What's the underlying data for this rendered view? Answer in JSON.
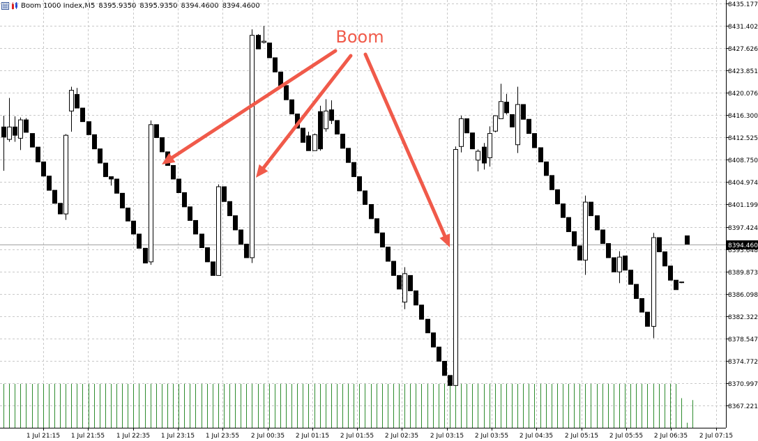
{
  "header": {
    "symbol": "Boom 1000 Index,M5",
    "ohlc": [
      "8395.9350",
      "8395.9350",
      "8394.4600",
      "8394.4600"
    ]
  },
  "annotation": {
    "text": "Boom",
    "color": "#f05a4a"
  },
  "colors": {
    "bull_fill": "#ffffff",
    "bear_fill": "#000000",
    "candle_outline": "#000000",
    "grid": "#c8c8c8",
    "volume": "#2e8b2e",
    "price_tag_bg": "#000000",
    "price_tag_fg": "#ffffff"
  },
  "chart_data": {
    "type": "candlestick",
    "symbol": "Boom 1000 Index",
    "timeframe": "M5",
    "ylim": [
      8365.0,
      8435.9
    ],
    "grid": true,
    "last_price": "8394.4600",
    "y_ticks": [
      "8435.1773",
      "8431.4020",
      "8427.6267",
      "8423.8514",
      "8420.0761",
      "8416.3007",
      "8412.5254",
      "8408.7501",
      "8404.9748",
      "8401.1995",
      "8397.4242",
      "8393.6489",
      "8389.8736",
      "8386.0982",
      "8382.3229",
      "8378.5476",
      "8374.7723",
      "8370.9970",
      "8367.2217"
    ],
    "x_ticks": [
      "1 Jul 21:15",
      "1 Jul 21:55",
      "1 Jul 22:35",
      "1 Jul 23:15",
      "1 Jul 23:55",
      "2 Jul 00:35",
      "2 Jul 01:15",
      "2 Jul 01:55",
      "2 Jul 02:35",
      "2 Jul 03:15",
      "2 Jul 03:55",
      "2 Jul 04:35",
      "2 Jul 05:15",
      "2 Jul 05:55",
      "2 Jul 06:35",
      "2 Jul 07:15"
    ],
    "candles": [
      {
        "o": 8414.3,
        "h": 8416.2,
        "l": 8406.9,
        "c": 8412.6
      },
      {
        "o": 8412.2,
        "h": 8419.2,
        "l": 8411.8,
        "c": 8414.3
      },
      {
        "o": 8414.3,
        "h": 8416.1,
        "l": 8411.8,
        "c": 8412.9
      },
      {
        "o": 8412.4,
        "h": 8415.9,
        "l": 8410.4,
        "c": 8415.5
      },
      {
        "o": 8415.5,
        "h": 8415.8,
        "l": 8413.4,
        "c": 8413.4
      },
      {
        "o": 8413.2,
        "h": 8413.2,
        "l": 8410.9,
        "c": 8410.9
      },
      {
        "o": 8410.9,
        "h": 8410.9,
        "l": 8408.4,
        "c": 8408.4
      },
      {
        "o": 8408.4,
        "h": 8408.4,
        "l": 8406.0,
        "c": 8406.0
      },
      {
        "o": 8406.0,
        "h": 8406.0,
        "l": 8403.6,
        "c": 8403.6
      },
      {
        "o": 8403.6,
        "h": 8403.6,
        "l": 8401.4,
        "c": 8401.4
      },
      {
        "o": 8401.4,
        "h": 8401.4,
        "l": 8399.6,
        "c": 8399.6
      },
      {
        "o": 8399.6,
        "h": 8413.1,
        "l": 8398.6,
        "c": 8412.9
      },
      {
        "o": 8417.0,
        "h": 8421.1,
        "l": 8413.5,
        "c": 8420.5
      },
      {
        "o": 8419.8,
        "h": 8420.9,
        "l": 8417.5,
        "c": 8417.5
      },
      {
        "o": 8417.5,
        "h": 8417.5,
        "l": 8415.2,
        "c": 8415.2
      },
      {
        "o": 8415.2,
        "h": 8415.2,
        "l": 8413.0,
        "c": 8413.0
      },
      {
        "o": 8413.0,
        "h": 8413.0,
        "l": 8410.6,
        "c": 8410.6
      },
      {
        "o": 8410.6,
        "h": 8410.6,
        "l": 8408.2,
        "c": 8408.2
      },
      {
        "o": 8408.2,
        "h": 8408.2,
        "l": 8405.9,
        "c": 8405.9
      },
      {
        "o": 8405.9,
        "h": 8405.9,
        "l": 8404.4,
        "c": 8405.5
      },
      {
        "o": 8405.5,
        "h": 8405.5,
        "l": 8403.1,
        "c": 8403.1
      },
      {
        "o": 8403.1,
        "h": 8403.1,
        "l": 8400.6,
        "c": 8400.6
      },
      {
        "o": 8400.6,
        "h": 8400.6,
        "l": 8398.4,
        "c": 8398.4
      },
      {
        "o": 8398.4,
        "h": 8398.4,
        "l": 8396.2,
        "c": 8396.2
      },
      {
        "o": 8396.2,
        "h": 8396.2,
        "l": 8393.8,
        "c": 8393.8
      },
      {
        "o": 8393.8,
        "h": 8393.8,
        "l": 8391.3,
        "c": 8391.3
      },
      {
        "o": 8391.5,
        "h": 8415.4,
        "l": 8391.0,
        "c": 8414.7
      },
      {
        "o": 8414.7,
        "h": 8414.7,
        "l": 8412.5,
        "c": 8412.5
      },
      {
        "o": 8412.5,
        "h": 8412.5,
        "l": 8410.1,
        "c": 8410.1
      },
      {
        "o": 8410.1,
        "h": 8410.1,
        "l": 8407.8,
        "c": 8407.8
      },
      {
        "o": 8407.8,
        "h": 8407.8,
        "l": 8405.5,
        "c": 8405.5
      },
      {
        "o": 8405.5,
        "h": 8405.5,
        "l": 8403.2,
        "c": 8403.2
      },
      {
        "o": 8403.2,
        "h": 8403.2,
        "l": 8400.8,
        "c": 8400.8
      },
      {
        "o": 8400.8,
        "h": 8400.8,
        "l": 8398.5,
        "c": 8398.5
      },
      {
        "o": 8398.5,
        "h": 8398.5,
        "l": 8396.2,
        "c": 8396.2
      },
      {
        "o": 8396.2,
        "h": 8396.2,
        "l": 8393.9,
        "c": 8393.9
      },
      {
        "o": 8393.9,
        "h": 8393.9,
        "l": 8391.5,
        "c": 8391.5
      },
      {
        "o": 8391.5,
        "h": 8391.5,
        "l": 8389.2,
        "c": 8389.2
      },
      {
        "o": 8389.2,
        "h": 8404.6,
        "l": 8389.2,
        "c": 8404.2
      },
      {
        "o": 8404.2,
        "h": 8404.2,
        "l": 8401.7,
        "c": 8401.7
      },
      {
        "o": 8401.7,
        "h": 8401.7,
        "l": 8399.3,
        "c": 8399.3
      },
      {
        "o": 8399.3,
        "h": 8399.3,
        "l": 8396.9,
        "c": 8396.9
      },
      {
        "o": 8396.9,
        "h": 8396.9,
        "l": 8394.5,
        "c": 8394.5
      },
      {
        "o": 8394.5,
        "h": 8394.5,
        "l": 8392.2,
        "c": 8392.2
      },
      {
        "o": 8392.2,
        "h": 8430.8,
        "l": 8391.3,
        "c": 8429.8
      },
      {
        "o": 8429.8,
        "h": 8430.0,
        "l": 8427.5,
        "c": 8427.5
      },
      {
        "o": 8428.6,
        "h": 8431.4,
        "l": 8428.4,
        "c": 8428.8
      },
      {
        "o": 8428.5,
        "h": 8428.5,
        "l": 8426.0,
        "c": 8426.0
      },
      {
        "o": 8426.0,
        "h": 8426.0,
        "l": 8423.6,
        "c": 8423.6
      },
      {
        "o": 8423.6,
        "h": 8423.6,
        "l": 8421.3,
        "c": 8421.3
      },
      {
        "o": 8421.3,
        "h": 8421.3,
        "l": 8418.9,
        "c": 8418.9
      },
      {
        "o": 8418.9,
        "h": 8418.9,
        "l": 8416.5,
        "c": 8416.5
      },
      {
        "o": 8416.5,
        "h": 8416.5,
        "l": 8414.1,
        "c": 8414.1
      },
      {
        "o": 8414.1,
        "h": 8414.1,
        "l": 8411.7,
        "c": 8411.7
      },
      {
        "o": 8412.8,
        "h": 8413.5,
        "l": 8410.3,
        "c": 8410.3
      },
      {
        "o": 8410.3,
        "h": 8413.2,
        "l": 8410.3,
        "c": 8413.0
      },
      {
        "o": 8416.9,
        "h": 8417.9,
        "l": 8410.3,
        "c": 8410.6
      },
      {
        "o": 8414.0,
        "h": 8419.0,
        "l": 8413.5,
        "c": 8417.0
      },
      {
        "o": 8417.2,
        "h": 8418.8,
        "l": 8414.8,
        "c": 8415.4
      },
      {
        "o": 8415.4,
        "h": 8415.4,
        "l": 8413.1,
        "c": 8413.1
      },
      {
        "o": 8413.1,
        "h": 8413.1,
        "l": 8410.7,
        "c": 8410.7
      },
      {
        "o": 8410.7,
        "h": 8410.7,
        "l": 8408.3,
        "c": 8408.3
      },
      {
        "o": 8408.3,
        "h": 8408.3,
        "l": 8405.9,
        "c": 8405.9
      },
      {
        "o": 8405.9,
        "h": 8405.9,
        "l": 8403.5,
        "c": 8403.5
      },
      {
        "o": 8403.5,
        "h": 8403.5,
        "l": 8401.2,
        "c": 8401.2
      },
      {
        "o": 8401.2,
        "h": 8401.2,
        "l": 8398.8,
        "c": 8398.8
      },
      {
        "o": 8398.8,
        "h": 8398.8,
        "l": 8396.4,
        "c": 8396.4
      },
      {
        "o": 8396.4,
        "h": 8396.4,
        "l": 8394.0,
        "c": 8394.0
      },
      {
        "o": 8394.0,
        "h": 8394.0,
        "l": 8391.6,
        "c": 8391.6
      },
      {
        "o": 8391.6,
        "h": 8391.6,
        "l": 8389.2,
        "c": 8389.2
      },
      {
        "o": 8389.2,
        "h": 8389.2,
        "l": 8386.9,
        "c": 8386.9
      },
      {
        "o": 8384.7,
        "h": 8390.6,
        "l": 8383.5,
        "c": 8389.5
      },
      {
        "o": 8389.2,
        "h": 8389.2,
        "l": 8386.6,
        "c": 8386.6
      },
      {
        "o": 8386.6,
        "h": 8386.6,
        "l": 8384.2,
        "c": 8384.2
      },
      {
        "o": 8384.2,
        "h": 8384.2,
        "l": 8381.8,
        "c": 8381.8
      },
      {
        "o": 8381.8,
        "h": 8381.8,
        "l": 8379.5,
        "c": 8379.5
      },
      {
        "o": 8379.5,
        "h": 8379.5,
        "l": 8377.1,
        "c": 8377.1
      },
      {
        "o": 8377.1,
        "h": 8377.1,
        "l": 8374.7,
        "c": 8374.7
      },
      {
        "o": 8374.7,
        "h": 8374.7,
        "l": 8372.3,
        "c": 8372.3
      },
      {
        "o": 8372.3,
        "h": 8372.3,
        "l": 8370.6,
        "c": 8370.6
      },
      {
        "o": 8370.6,
        "h": 8411.0,
        "l": 8370.6,
        "c": 8410.5
      },
      {
        "o": 8411.0,
        "h": 8416.2,
        "l": 8410.0,
        "c": 8415.7
      },
      {
        "o": 8415.7,
        "h": 8415.7,
        "l": 8413.3,
        "c": 8413.3
      },
      {
        "o": 8413.3,
        "h": 8413.3,
        "l": 8410.6,
        "c": 8410.6
      },
      {
        "o": 8408.7,
        "h": 8410.5,
        "l": 8406.8,
        "c": 8410.2
      },
      {
        "o": 8410.9,
        "h": 8411.6,
        "l": 8407.1,
        "c": 8408.2
      },
      {
        "o": 8409.1,
        "h": 8414.4,
        "l": 8407.6,
        "c": 8413.2
      },
      {
        "o": 8413.6,
        "h": 8416.2,
        "l": 8413.4,
        "c": 8416.2
      },
      {
        "o": 8415.7,
        "h": 8421.6,
        "l": 8415.7,
        "c": 8418.6
      },
      {
        "o": 8418.5,
        "h": 8419.9,
        "l": 8416.4,
        "c": 8416.7
      },
      {
        "o": 8416.4,
        "h": 8416.4,
        "l": 8414.3,
        "c": 8414.3
      },
      {
        "o": 8411.3,
        "h": 8421.1,
        "l": 8409.9,
        "c": 8418.1
      },
      {
        "o": 8418.1,
        "h": 8418.1,
        "l": 8415.6,
        "c": 8415.6
      },
      {
        "o": 8415.6,
        "h": 8415.6,
        "l": 8413.2,
        "c": 8413.2
      },
      {
        "o": 8413.2,
        "h": 8413.2,
        "l": 8410.8,
        "c": 8410.8
      },
      {
        "o": 8410.8,
        "h": 8410.8,
        "l": 8408.4,
        "c": 8408.4
      },
      {
        "o": 8408.4,
        "h": 8408.4,
        "l": 8406.1,
        "c": 8406.1
      },
      {
        "o": 8406.1,
        "h": 8406.1,
        "l": 8403.7,
        "c": 8403.7
      },
      {
        "o": 8403.7,
        "h": 8403.7,
        "l": 8401.3,
        "c": 8401.3
      },
      {
        "o": 8401.3,
        "h": 8401.3,
        "l": 8399.0,
        "c": 8399.0
      },
      {
        "o": 8399.0,
        "h": 8399.0,
        "l": 8396.6,
        "c": 8396.6
      },
      {
        "o": 8396.6,
        "h": 8396.6,
        "l": 8394.2,
        "c": 8394.2
      },
      {
        "o": 8394.2,
        "h": 8394.2,
        "l": 8391.8,
        "c": 8391.8
      },
      {
        "o": 8391.8,
        "h": 8402.7,
        "l": 8389.3,
        "c": 8401.6
      },
      {
        "o": 8401.6,
        "h": 8401.6,
        "l": 8399.3,
        "c": 8399.3
      },
      {
        "o": 8399.3,
        "h": 8399.3,
        "l": 8396.9,
        "c": 8396.9
      },
      {
        "o": 8396.9,
        "h": 8396.9,
        "l": 8394.6,
        "c": 8394.6
      },
      {
        "o": 8394.6,
        "h": 8394.6,
        "l": 8392.2,
        "c": 8392.2
      },
      {
        "o": 8392.2,
        "h": 8392.2,
        "l": 8389.8,
        "c": 8389.8
      },
      {
        "o": 8389.8,
        "h": 8393.3,
        "l": 8387.9,
        "c": 8392.3
      },
      {
        "o": 8392.5,
        "h": 8392.5,
        "l": 8390.1,
        "c": 8390.1
      },
      {
        "o": 8390.1,
        "h": 8390.1,
        "l": 8387.7,
        "c": 8387.7
      },
      {
        "o": 8387.7,
        "h": 8387.7,
        "l": 8385.3,
        "c": 8385.3
      },
      {
        "o": 8385.3,
        "h": 8385.3,
        "l": 8383.0,
        "c": 8383.0
      },
      {
        "o": 8383.0,
        "h": 8383.0,
        "l": 8380.6,
        "c": 8380.6
      },
      {
        "o": 8380.6,
        "h": 8396.4,
        "l": 8378.6,
        "c": 8395.6
      },
      {
        "o": 8395.6,
        "h": 8395.6,
        "l": 8393.2,
        "c": 8393.2
      },
      {
        "o": 8393.2,
        "h": 8393.2,
        "l": 8390.8,
        "c": 8390.8
      },
      {
        "o": 8390.8,
        "h": 8390.8,
        "l": 8388.4,
        "c": 8388.4
      },
      {
        "o": 8388.4,
        "h": 8388.4,
        "l": 8386.8,
        "c": 8386.8
      },
      {
        "o": 8388.0,
        "h": 8388.1,
        "l": 8387.9,
        "c": 8388.1
      },
      {
        "o": 8395.9,
        "h": 8395.9,
        "l": 8394.5,
        "c": 8394.5
      }
    ],
    "volumes": [
      0.95,
      0.95,
      0.95,
      0.95,
      0.95,
      0.95,
      0.95,
      0.95,
      0.95,
      0.95,
      0.95,
      0.95,
      0.95,
      0.95,
      0.95,
      0.95,
      0.95,
      0.95,
      0.95,
      0.95,
      0.95,
      0.95,
      0.95,
      0.95,
      0.95,
      0.95,
      0.95,
      0.95,
      0.95,
      0.95,
      0.95,
      0.95,
      0.95,
      0.95,
      0.95,
      0.95,
      0.95,
      0.95,
      0.95,
      0.95,
      0.95,
      0.95,
      0.95,
      0.95,
      0.95,
      0.95,
      0.95,
      0.95,
      0.95,
      0.95,
      0.95,
      0.95,
      0.95,
      0.95,
      0.95,
      0.95,
      0.95,
      0.95,
      0.95,
      0.95,
      0.95,
      0.95,
      0.95,
      0.95,
      0.95,
      0.95,
      0.95,
      0.95,
      0.95,
      0.95,
      0.95,
      0.95,
      0.95,
      0.95,
      0.95,
      0.95,
      0.95,
      0.95,
      0.95,
      0.95,
      0.95,
      0.95,
      0.95,
      0.95,
      0.95,
      0.95,
      0.95,
      0.95,
      0.95,
      0.95,
      0.95,
      0.95,
      0.95,
      0.95,
      0.95,
      0.95,
      0.95,
      0.95,
      0.95,
      0.95,
      0.95,
      0.95,
      0.95,
      0.95,
      0.95,
      0.95,
      0.95,
      0.95,
      0.95,
      0.95,
      0.95,
      0.95,
      0.95,
      0.95,
      0.95,
      0.95,
      0.95,
      0.95,
      0.95,
      0.95,
      0.64,
      0.11,
      0.6
    ]
  }
}
